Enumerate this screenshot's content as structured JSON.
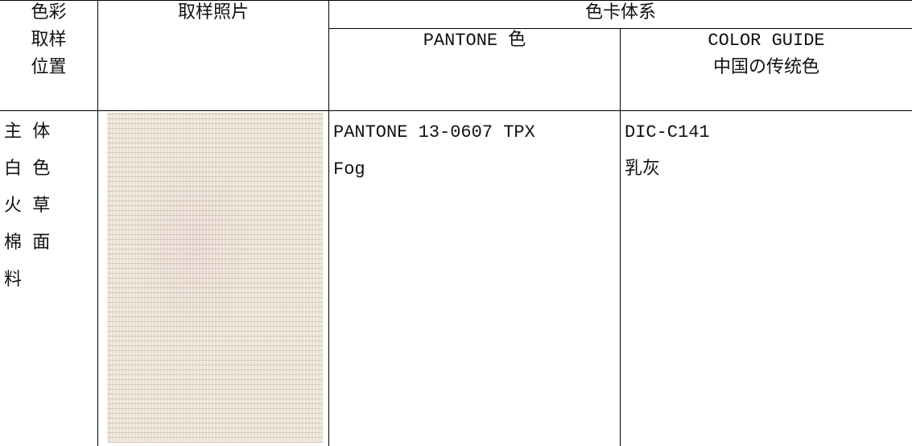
{
  "table": {
    "header": {
      "position": [
        "色彩",
        "取样",
        "位置"
      ],
      "photo": "取样照片",
      "system": "色卡体系",
      "pantone": "PANTONE 色",
      "guide": [
        "COLOR GUIDE",
        "中国の传统色"
      ]
    },
    "rows": [
      {
        "position": [
          "主 体",
          "白 色",
          "火 草",
          "棉 面",
          "料"
        ],
        "pantone": [
          "PANTONE 13-0607 TPX",
          "Fog"
        ],
        "guide": [
          "DIC-C141",
          "乳灰"
        ]
      }
    ]
  }
}
